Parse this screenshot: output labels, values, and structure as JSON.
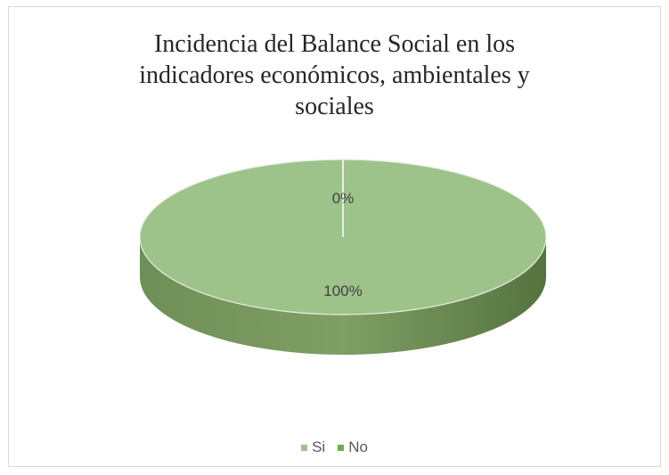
{
  "chart_data": {
    "type": "pie",
    "title": "Incidencia del Balance Social en los indicadores económicos, ambientales y sociales",
    "categories": [
      "Si",
      "No"
    ],
    "values": [
      100,
      0
    ],
    "data_labels": [
      "100%",
      "0%"
    ],
    "colors": [
      "#9dc38b",
      "#70ad47"
    ],
    "legend_position": "bottom",
    "style": "3d"
  }
}
